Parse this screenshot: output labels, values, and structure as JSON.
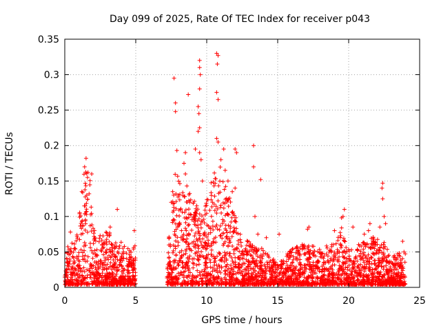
{
  "chart_data": {
    "type": "scatter",
    "title": "Day 099 of 2025, Rate Of TEC Index for receiver p043",
    "xlabel": "GPS time / hours",
    "ylabel": "ROTI / TECUs",
    "xlim": [
      0,
      25
    ],
    "ylim": [
      0,
      0.35
    ],
    "x_ticks": [
      "0",
      "5",
      "10",
      "15",
      "20",
      "25"
    ],
    "y_ticks": [
      "0",
      "0.05",
      "0.1",
      "0.15",
      "0.2",
      "0.25",
      "0.3",
      "0.35"
    ],
    "grid": true,
    "marker": "plus",
    "color": "#ff0000",
    "envelope": [
      [
        0.0,
        0.05
      ],
      [
        0.5,
        0.06
      ],
      [
        1.0,
        0.1
      ],
      [
        1.5,
        0.18
      ],
      [
        1.8,
        0.15
      ],
      [
        2.0,
        0.09
      ],
      [
        2.5,
        0.07
      ],
      [
        3.0,
        0.08
      ],
      [
        3.5,
        0.06
      ],
      [
        4.0,
        0.06
      ],
      [
        4.5,
        0.05
      ],
      [
        5.0,
        0.06
      ],
      [
        7.2,
        0.05
      ],
      [
        7.6,
        0.12
      ],
      [
        7.8,
        0.16
      ],
      [
        8.5,
        0.13
      ],
      [
        9.0,
        0.14
      ],
      [
        9.5,
        0.1
      ],
      [
        10.0,
        0.12
      ],
      [
        10.5,
        0.16
      ],
      [
        11.0,
        0.17
      ],
      [
        11.5,
        0.13
      ],
      [
        12.0,
        0.1
      ],
      [
        12.5,
        0.07
      ],
      [
        13.0,
        0.06
      ],
      [
        14.0,
        0.05
      ],
      [
        15.0,
        0.03
      ],
      [
        16.0,
        0.05
      ],
      [
        17.0,
        0.06
      ],
      [
        18.0,
        0.05
      ],
      [
        19.0,
        0.06
      ],
      [
        19.5,
        0.08
      ],
      [
        20.0,
        0.05
      ],
      [
        21.0,
        0.06
      ],
      [
        22.0,
        0.07
      ],
      [
        22.5,
        0.06
      ],
      [
        23.0,
        0.04
      ],
      [
        24.0,
        0.05
      ]
    ],
    "outliers": [
      [
        1.2,
        0.135
      ],
      [
        1.4,
        0.17
      ],
      [
        1.5,
        0.182
      ],
      [
        1.6,
        0.155
      ],
      [
        1.9,
        0.16
      ],
      [
        3.7,
        0.11
      ],
      [
        3.2,
        0.085
      ],
      [
        4.9,
        0.08
      ],
      [
        0.4,
        0.078
      ],
      [
        7.5,
        0.12
      ],
      [
        7.7,
        0.295
      ],
      [
        7.8,
        0.26
      ],
      [
        7.8,
        0.248
      ],
      [
        7.9,
        0.193
      ],
      [
        7.6,
        0.135
      ],
      [
        8.0,
        0.13
      ],
      [
        8.4,
        0.175
      ],
      [
        8.5,
        0.19
      ],
      [
        8.5,
        0.16
      ],
      [
        8.6,
        0.143
      ],
      [
        8.7,
        0.272
      ],
      [
        8.8,
        0.12
      ],
      [
        9.2,
        0.195
      ],
      [
        9.5,
        0.32
      ],
      [
        9.5,
        0.31
      ],
      [
        9.55,
        0.3
      ],
      [
        9.5,
        0.28
      ],
      [
        9.4,
        0.255
      ],
      [
        9.45,
        0.245
      ],
      [
        9.5,
        0.225
      ],
      [
        9.4,
        0.22
      ],
      [
        9.5,
        0.19
      ],
      [
        9.6,
        0.18
      ],
      [
        9.7,
        0.15
      ],
      [
        10.7,
        0.33
      ],
      [
        10.8,
        0.327
      ],
      [
        10.75,
        0.315
      ],
      [
        10.7,
        0.275
      ],
      [
        10.8,
        0.265
      ],
      [
        10.7,
        0.21
      ],
      [
        10.8,
        0.205
      ],
      [
        11.0,
        0.18
      ],
      [
        11.2,
        0.195
      ],
      [
        11.3,
        0.165
      ],
      [
        11.5,
        0.15
      ],
      [
        11.8,
        0.135
      ],
      [
        12.0,
        0.195
      ],
      [
        12.1,
        0.19
      ],
      [
        12.0,
        0.14
      ],
      [
        13.3,
        0.2
      ],
      [
        13.3,
        0.17
      ],
      [
        13.8,
        0.152
      ],
      [
        13.4,
        0.1
      ],
      [
        13.6,
        0.075
      ],
      [
        14.2,
        0.07
      ],
      [
        15.1,
        0.075
      ],
      [
        17.2,
        0.085
      ],
      [
        17.1,
        0.082
      ],
      [
        19.0,
        0.08
      ],
      [
        19.5,
        0.098
      ],
      [
        19.7,
        0.11
      ],
      [
        19.6,
        0.1
      ],
      [
        20.3,
        0.085
      ],
      [
        21.1,
        0.075
      ],
      [
        21.5,
        0.09
      ],
      [
        21.4,
        0.08
      ],
      [
        22.2,
        0.085
      ],
      [
        22.4,
        0.147
      ],
      [
        22.35,
        0.14
      ],
      [
        22.4,
        0.125
      ],
      [
        22.5,
        0.1
      ],
      [
        22.6,
        0.09
      ],
      [
        23.8,
        0.065
      ],
      [
        23.9,
        0.05
      ]
    ]
  }
}
